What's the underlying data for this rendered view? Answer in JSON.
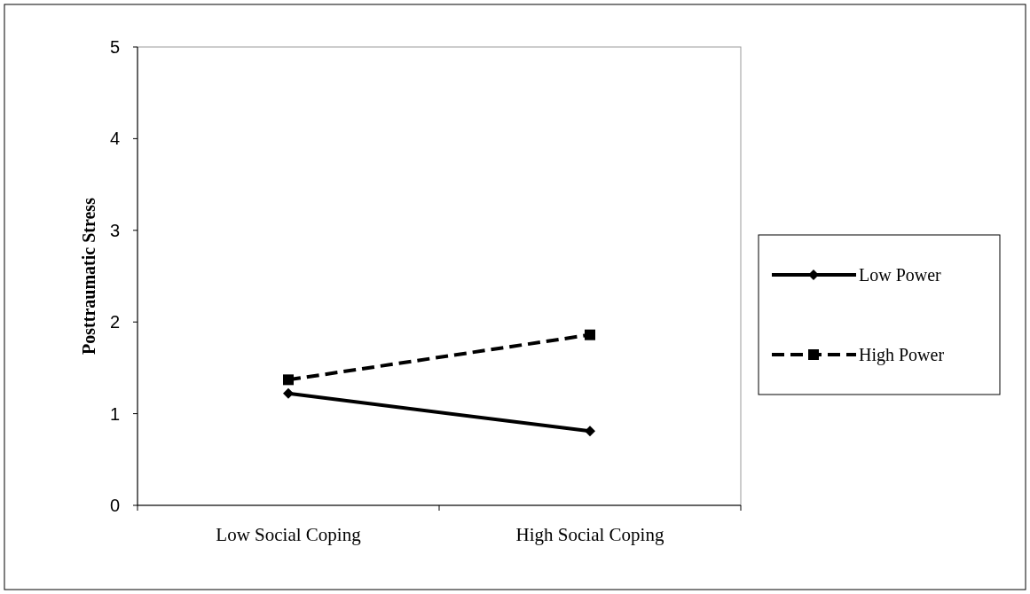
{
  "chart_data": {
    "type": "line",
    "ylabel": "Posttraumatic Stress",
    "categories": [
      "Low Social Coping",
      "High Social Coping"
    ],
    "series": [
      {
        "name": "Low Power",
        "color": "#000000",
        "values": [
          1.22,
          0.81
        ],
        "marker": "diamond",
        "line_style": "solid"
      },
      {
        "name": "High Power",
        "color": "#000000",
        "values": [
          1.37,
          1.86
        ],
        "marker": "square",
        "line_style": "dashed"
      }
    ],
    "ylim": [
      0,
      5
    ],
    "yticks": [
      0,
      1,
      2,
      3,
      4,
      5
    ],
    "grid": false,
    "legend": "right"
  }
}
